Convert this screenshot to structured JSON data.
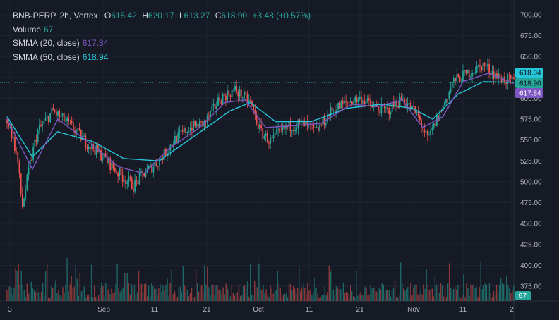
{
  "header": {
    "symbol": "BNB-PERP, 2h, Vertex",
    "o_label": "O",
    "o": "615.42",
    "h_label": "H",
    "h": "620.17",
    "l_label": "L",
    "l": "613.27",
    "c_label": "C",
    "c": "618.90",
    "change": "+3.48 (+0.57%)"
  },
  "indicators": [
    {
      "label": "Volume",
      "value": "67",
      "color": "#26a69a"
    },
    {
      "label": "SMMA (20, close)",
      "value": "617.84",
      "color": "#7e57c2"
    },
    {
      "label": "SMMA (50, close)",
      "value": "618.94",
      "color": "#26c6da"
    }
  ],
  "colors": {
    "up": "#26a69a",
    "down": "#ef5350",
    "background": "#161a25",
    "grid": "#1f2330",
    "price_line": "#26a69a"
  },
  "price_axis": [
    "700.00",
    "675.00",
    "650.00",
    "625.00",
    "600.00",
    "575.00",
    "550.00",
    "525.00",
    "500.00",
    "475.00",
    "450.00",
    "425.00",
    "400.00",
    "375.00"
  ],
  "time_axis": [
    "3",
    "Sep",
    "11",
    "21",
    "Oct",
    "11",
    "21",
    "Nov",
    "11",
    "2"
  ],
  "price_badges": {
    "smma50": "618.94",
    "close": "618.90",
    "smma20": "617.84",
    "volume": "67"
  },
  "chart_data": {
    "type": "candlestick",
    "y_range": [
      360,
      710
    ],
    "last_close": 618.9,
    "trend_points": [
      [
        0,
        575
      ],
      [
        0.008,
        560
      ],
      [
        0.02,
        530
      ],
      [
        0.03,
        470
      ],
      [
        0.045,
        520
      ],
      [
        0.06,
        560
      ],
      [
        0.09,
        585
      ],
      [
        0.12,
        570
      ],
      [
        0.16,
        545
      ],
      [
        0.19,
        530
      ],
      [
        0.22,
        510
      ],
      [
        0.25,
        495
      ],
      [
        0.27,
        510
      ],
      [
        0.3,
        525
      ],
      [
        0.33,
        550
      ],
      [
        0.36,
        565
      ],
      [
        0.39,
        570
      ],
      [
        0.42,
        600
      ],
      [
        0.45,
        610
      ],
      [
        0.48,
        595
      ],
      [
        0.5,
        560
      ],
      [
        0.52,
        548
      ],
      [
        0.55,
        565
      ],
      [
        0.58,
        570
      ],
      [
        0.61,
        560
      ],
      [
        0.64,
        585
      ],
      [
        0.67,
        595
      ],
      [
        0.7,
        600
      ],
      [
        0.72,
        590
      ],
      [
        0.75,
        585
      ],
      [
        0.78,
        600
      ],
      [
        0.81,
        580
      ],
      [
        0.83,
        550
      ],
      [
        0.86,
        590
      ],
      [
        0.88,
        620
      ],
      [
        0.91,
        630
      ],
      [
        0.94,
        640
      ],
      [
        0.97,
        625
      ],
      [
        1.0,
        618.9
      ]
    ],
    "smma20_points": [
      [
        0,
        575
      ],
      [
        0.05,
        515
      ],
      [
        0.1,
        575
      ],
      [
        0.16,
        548
      ],
      [
        0.22,
        518
      ],
      [
        0.27,
        510
      ],
      [
        0.32,
        540
      ],
      [
        0.38,
        565
      ],
      [
        0.43,
        595
      ],
      [
        0.47,
        598
      ],
      [
        0.51,
        565
      ],
      [
        0.56,
        567
      ],
      [
        0.62,
        570
      ],
      [
        0.68,
        593
      ],
      [
        0.73,
        590
      ],
      [
        0.78,
        598
      ],
      [
        0.82,
        565
      ],
      [
        0.86,
        578
      ],
      [
        0.9,
        620
      ],
      [
        0.95,
        630
      ],
      [
        1.0,
        617.84
      ]
    ],
    "smma50_points": [
      [
        0,
        578
      ],
      [
        0.05,
        530
      ],
      [
        0.1,
        560
      ],
      [
        0.17,
        548
      ],
      [
        0.23,
        528
      ],
      [
        0.3,
        525
      ],
      [
        0.37,
        555
      ],
      [
        0.44,
        585
      ],
      [
        0.48,
        595
      ],
      [
        0.53,
        572
      ],
      [
        0.6,
        572
      ],
      [
        0.67,
        588
      ],
      [
        0.74,
        593
      ],
      [
        0.8,
        588
      ],
      [
        0.84,
        575
      ],
      [
        0.89,
        605
      ],
      [
        0.94,
        620
      ],
      [
        1.0,
        618.94
      ]
    ]
  }
}
